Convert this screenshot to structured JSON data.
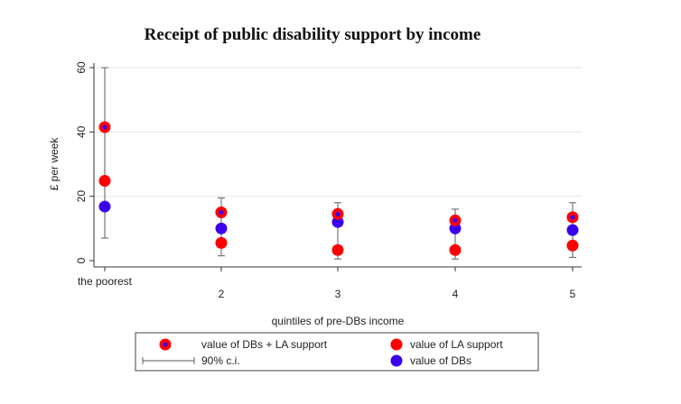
{
  "chart_data": {
    "type": "scatter",
    "title": "Receipt of public disability support by income",
    "xlabel": "quintiles of pre-DBs income",
    "ylabel": "£ per week",
    "categories": [
      "the poorest",
      "2",
      "3",
      "4",
      "5"
    ],
    "ylim": [
      0,
      60
    ],
    "yticks": [
      0,
      20,
      40,
      60
    ],
    "grid": true,
    "legend_position": "bottom",
    "series": [
      {
        "name": "value of DBs + LA support",
        "marker": "red-circle-blue-center",
        "values": [
          41.5,
          15,
          14.5,
          12.5,
          13.5
        ],
        "ci_low": [
          7,
          1.5,
          0.5,
          0.5,
          1
        ],
        "ci_high": [
          60,
          19.5,
          18,
          16,
          18
        ]
      },
      {
        "name": "value of LA support",
        "marker": "red-circle",
        "values": [
          24.8,
          5.5,
          3.3,
          3.3,
          4.7
        ]
      },
      {
        "name": "value of DBs",
        "marker": "blue-circle",
        "values": [
          16.8,
          10,
          12,
          10,
          9.5
        ]
      }
    ],
    "ci_legend_label": "90% c.i.",
    "colors": {
      "red": "#ff0000",
      "blue": "#3a00ee",
      "ci": "#777777"
    }
  }
}
